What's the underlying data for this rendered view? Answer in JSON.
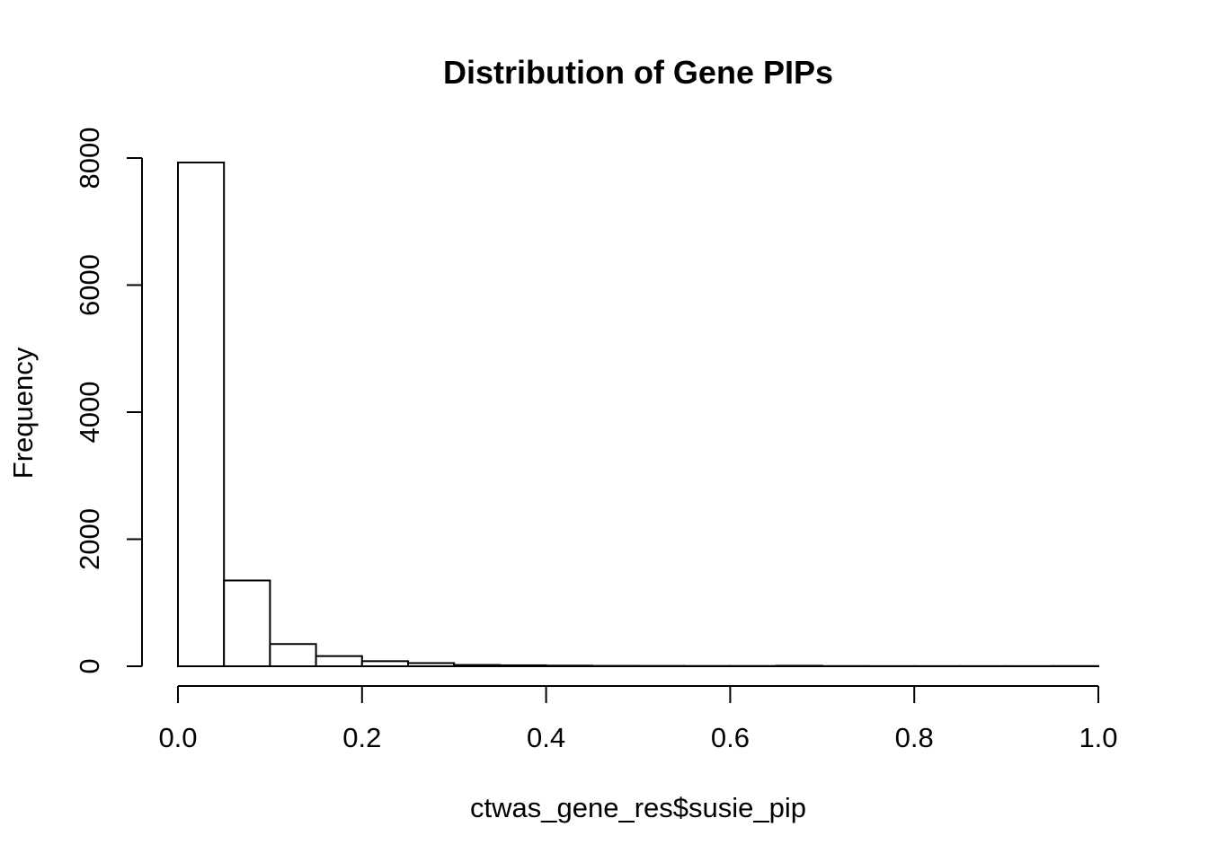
{
  "chart_data": {
    "type": "bar",
    "subtype": "histogram",
    "title": "Distribution of Gene PIPs",
    "xlabel": "ctwas_gene_res$susie_pip",
    "ylabel": "Frequency",
    "xlim": [
      0,
      1
    ],
    "ylim": [
      0,
      8000
    ],
    "bin_width": 0.05,
    "bin_edges": [
      0.0,
      0.05,
      0.1,
      0.15,
      0.2,
      0.25,
      0.3,
      0.35,
      0.4,
      0.45,
      0.5,
      0.55,
      0.6,
      0.65,
      0.7,
      0.75,
      0.8,
      0.85,
      0.9,
      0.95,
      1.0
    ],
    "values": [
      7930,
      1350,
      350,
      160,
      80,
      50,
      20,
      15,
      10,
      6,
      5,
      4,
      4,
      8,
      3,
      2,
      2,
      2,
      2,
      3
    ],
    "x_ticks": [
      0.0,
      0.2,
      0.4,
      0.6,
      0.8,
      1.0
    ],
    "x_tick_labels": [
      "0.0",
      "0.2",
      "0.4",
      "0.6",
      "0.8",
      "1.0"
    ],
    "y_ticks": [
      0,
      2000,
      4000,
      6000,
      8000
    ],
    "y_tick_labels": [
      "0",
      "2000",
      "4000",
      "6000",
      "8000"
    ],
    "grid": false,
    "legend": "none",
    "bar_fill": "#ffffff",
    "bar_stroke": "#000000"
  }
}
